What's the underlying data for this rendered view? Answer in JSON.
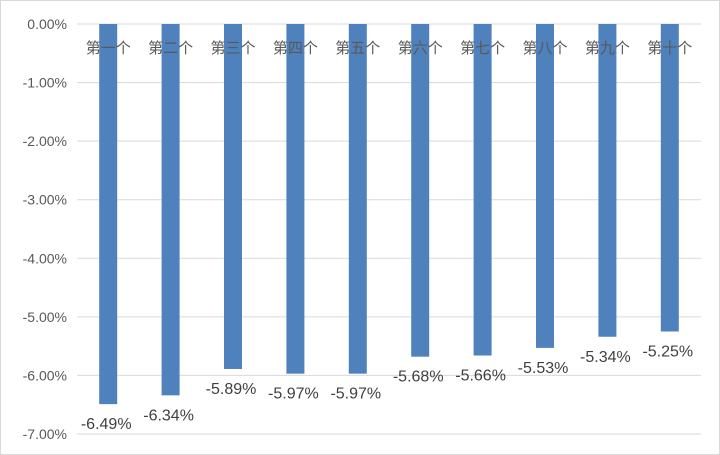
{
  "chart_data": {
    "type": "bar",
    "title": "",
    "xlabel": "",
    "ylabel": "",
    "categories": [
      "第一个",
      "第二个",
      "第三个",
      "第四个",
      "第五个",
      "第六个",
      "第七个",
      "第八个",
      "第九个",
      "第十个"
    ],
    "values": [
      -6.49,
      -6.34,
      -5.89,
      -5.97,
      -5.97,
      -5.68,
      -5.66,
      -5.53,
      -5.34,
      -5.25
    ],
    "data_labels": [
      "-6.49%",
      "-6.34%",
      "-5.89%",
      "-5.97%",
      "-5.97%",
      "-5.68%",
      "-5.66%",
      "-5.53%",
      "-5.34%",
      "-5.25%"
    ],
    "ylim": [
      -7,
      0
    ],
    "y_ticks": [
      0,
      -1,
      -2,
      -3,
      -4,
      -5,
      -6,
      -7
    ],
    "y_tick_labels": [
      "0.00%",
      "-1.00%",
      "-2.00%",
      "-3.00%",
      "-4.00%",
      "-5.00%",
      "-6.00%",
      "-7.00%"
    ],
    "grid": true,
    "legend": "none",
    "bar_color": "#4f81bd",
    "value_unit": "%"
  }
}
